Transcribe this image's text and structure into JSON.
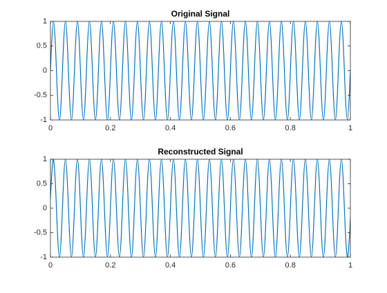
{
  "chart_data": [
    {
      "type": "line",
      "title": "Original Signal",
      "color": "#0072bd",
      "x": [
        0,
        0.01,
        0.02,
        0.03,
        0.04,
        0.05,
        0.06,
        0.07,
        0.08,
        0.09,
        0.1,
        0.11,
        0.12,
        0.13,
        0.14,
        0.15,
        0.16,
        0.17,
        0.18,
        0.19,
        0.2,
        0.21,
        0.22,
        0.23,
        0.24,
        0.25,
        0.26,
        0.27,
        0.28,
        0.29,
        0.3,
        0.31,
        0.32,
        0.33,
        0.34,
        0.35,
        0.36,
        0.37,
        0.38,
        0.39,
        0.4,
        0.41,
        0.42,
        0.43,
        0.44,
        0.45,
        0.46,
        0.47,
        0.48,
        0.49,
        0.5,
        0.51,
        0.52,
        0.53,
        0.54,
        0.55,
        0.56,
        0.57,
        0.58,
        0.59,
        0.6,
        0.61,
        0.62,
        0.63,
        0.64,
        0.65,
        0.66,
        0.67,
        0.68,
        0.69,
        0.7,
        0.71,
        0.72,
        0.73,
        0.74,
        0.75,
        0.76,
        0.77,
        0.78,
        0.79,
        0.8,
        0.81,
        0.82,
        0.83,
        0.84,
        0.85,
        0.86,
        0.87,
        0.88,
        0.89,
        0.9,
        0.91,
        0.92,
        0.93,
        0.94,
        0.95,
        0.96,
        0.97,
        0.98,
        0.99,
        1
      ],
      "values": [
        0,
        1,
        0,
        -1,
        0,
        1,
        0,
        -1,
        0,
        1,
        0,
        -1,
        0,
        1,
        0,
        -1,
        0,
        1,
        0,
        -1,
        0,
        1,
        0,
        -1,
        0,
        1,
        0,
        -1,
        0,
        1,
        0,
        -1,
        0,
        1,
        0,
        -1,
        0,
        1,
        0,
        -1,
        0,
        1,
        0,
        -1,
        0,
        1,
        0,
        -1,
        0,
        1,
        0,
        -1,
        0,
        1,
        0,
        -1,
        0,
        1,
        0,
        -1,
        0,
        1,
        0,
        -1,
        0,
        1,
        0,
        -1,
        0,
        1,
        0,
        -1,
        0,
        1,
        0,
        -1,
        0,
        1,
        0,
        -1,
        0,
        1,
        0,
        -1,
        0,
        1,
        0,
        -1,
        0,
        1,
        0,
        -1,
        0,
        1,
        0,
        -1,
        0,
        1,
        0,
        -1,
        0
      ],
      "xlim": [
        0,
        1
      ],
      "xticks": [
        0,
        0.2,
        0.4,
        0.6,
        0.8,
        1
      ],
      "ylim": [
        -1,
        1
      ],
      "yticks": [
        -1,
        -0.5,
        0,
        0.5,
        1
      ]
    },
    {
      "type": "line",
      "title": "Reconstructed Signal",
      "color": "#0072bd",
      "x": [
        0,
        0.01,
        0.02,
        0.03,
        0.04,
        0.05,
        0.06,
        0.07,
        0.08,
        0.09,
        0.1,
        0.11,
        0.12,
        0.13,
        0.14,
        0.15,
        0.16,
        0.17,
        0.18,
        0.19,
        0.2,
        0.21,
        0.22,
        0.23,
        0.24,
        0.25,
        0.26,
        0.27,
        0.28,
        0.29,
        0.3,
        0.31,
        0.32,
        0.33,
        0.34,
        0.35,
        0.36,
        0.37,
        0.38,
        0.39,
        0.4,
        0.41,
        0.42,
        0.43,
        0.44,
        0.45,
        0.46,
        0.47,
        0.48,
        0.49,
        0.5,
        0.51,
        0.52,
        0.53,
        0.54,
        0.55,
        0.56,
        0.57,
        0.58,
        0.59,
        0.6,
        0.61,
        0.62,
        0.63,
        0.64,
        0.65,
        0.66,
        0.67,
        0.68,
        0.69,
        0.7,
        0.71,
        0.72,
        0.73,
        0.74,
        0.75,
        0.76,
        0.77,
        0.78,
        0.79,
        0.8,
        0.81,
        0.82,
        0.83,
        0.84,
        0.85,
        0.86,
        0.87,
        0.88,
        0.89,
        0.9,
        0.91,
        0.92,
        0.93,
        0.94,
        0.95,
        0.96,
        0.97,
        0.98,
        0.99,
        1
      ],
      "values": [
        0.2,
        1,
        0,
        -1,
        0,
        1,
        0,
        -1,
        0,
        1,
        0,
        -1,
        0,
        1,
        0,
        -1,
        0,
        1,
        0,
        -1,
        0,
        1,
        0,
        -1,
        0,
        1,
        0,
        -1,
        0,
        1,
        0,
        -1,
        0,
        1,
        0,
        -1,
        0,
        1,
        0,
        -1,
        0,
        1,
        0,
        -1,
        0,
        1,
        0,
        -1,
        0,
        1,
        0,
        -1,
        0,
        1,
        0,
        -1,
        0,
        1,
        0,
        -1,
        0,
        1,
        0,
        -1,
        0,
        1,
        0,
        -1,
        0,
        1,
        0,
        -1,
        0,
        1,
        0,
        -1,
        0,
        1,
        0,
        -1,
        0,
        1,
        0,
        -1,
        0,
        1,
        0,
        -1,
        0,
        1,
        0,
        -1,
        0,
        1,
        0,
        -1,
        0,
        1,
        0,
        -1,
        -0.2
      ],
      "xlim": [
        0,
        1
      ],
      "xticks": [
        0,
        0.2,
        0.4,
        0.6,
        0.8,
        1
      ],
      "ylim": [
        -1,
        1
      ],
      "yticks": [
        -1,
        -0.5,
        0,
        0.5,
        1
      ]
    }
  ]
}
